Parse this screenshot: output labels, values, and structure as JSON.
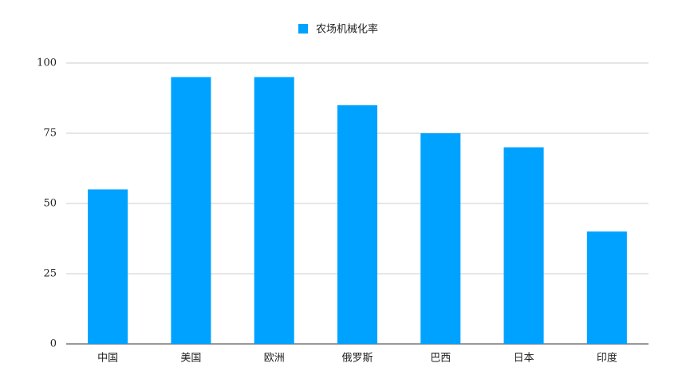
{
  "chart_data": {
    "type": "bar",
    "categories": [
      "中国",
      "美国",
      "欧洲",
      "俄罗斯",
      "巴西",
      "日本",
      "印度"
    ],
    "series": [
      {
        "name": "农场机械化率",
        "color": "#00a2ff",
        "values": [
          55,
          95,
          95,
          85,
          75,
          70,
          40
        ]
      }
    ],
    "ylim": [
      0,
      100
    ],
    "yticks": [
      0,
      25,
      50,
      75,
      100
    ],
    "grid": true,
    "legend": "top"
  }
}
